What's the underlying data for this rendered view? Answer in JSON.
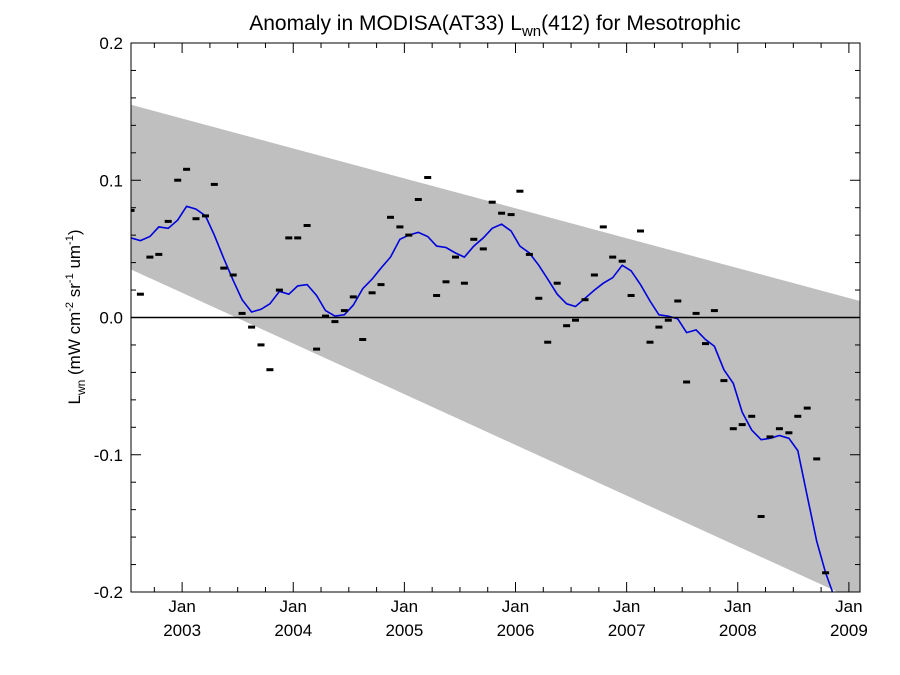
{
  "chart_data": {
    "type": "line",
    "title": {
      "prefix": "Anomaly in MODISA(AT33) L",
      "sub": "wn",
      "suffix": "(412) for Mesotrophic"
    },
    "ylabel": {
      "main": "L",
      "sub": "wn",
      "units": [
        {
          "t": " (mW cm",
          "s": ""
        },
        {
          "t": "-2",
          "s": "sup"
        },
        {
          "t": " sr",
          "s": ""
        },
        {
          "t": "-1",
          "s": "sup"
        },
        {
          "t": " um",
          "s": ""
        },
        {
          "t": "-1",
          "s": "sup"
        },
        {
          "t": ")",
          "s": ""
        }
      ]
    },
    "xlabel": "",
    "xlim": [
      2002.54,
      2009.1
    ],
    "ylim": [
      -0.2,
      0.2
    ],
    "x_ticks": [
      {
        "x": 2003,
        "month": "Jan",
        "year": "2003"
      },
      {
        "x": 2004,
        "month": "Jan",
        "year": "2004"
      },
      {
        "x": 2005,
        "month": "Jan",
        "year": "2005"
      },
      {
        "x": 2006,
        "month": "Jan",
        "year": "2006"
      },
      {
        "x": 2007,
        "month": "Jan",
        "year": "2007"
      },
      {
        "x": 2008,
        "month": "Jan",
        "year": "2008"
      },
      {
        "x": 2009,
        "month": "Jan",
        "year": "2009"
      }
    ],
    "y_ticks": [
      {
        "y": 0.2,
        "label": "0.2"
      },
      {
        "y": 0.1,
        "label": "0.1"
      },
      {
        "y": 0.0,
        "label": "0.0"
      },
      {
        "y": -0.1,
        "label": "-0.1"
      },
      {
        "y": -0.2,
        "label": "-0.2"
      }
    ],
    "envelope": {
      "color": "#bfbfbf",
      "upper": [
        [
          2002.54,
          0.155
        ],
        [
          2009.1,
          0.012
        ]
      ],
      "lower": [
        [
          2002.54,
          0.035
        ],
        [
          2008.9,
          -0.2
        ]
      ]
    },
    "zero_line": {
      "y": 0.0,
      "color": "#000000"
    },
    "series": [
      {
        "kind": "monthly-anomaly",
        "color": "#000000",
        "x": [
          2002.54,
          2002.625,
          2002.71,
          2002.79,
          2002.875,
          2002.96,
          2003.04,
          2003.125,
          2003.21,
          2003.29,
          2003.375,
          2003.46,
          2003.54,
          2003.625,
          2003.71,
          2003.79,
          2003.875,
          2003.96,
          2004.04,
          2004.125,
          2004.21,
          2004.29,
          2004.375,
          2004.46,
          2004.54,
          2004.625,
          2004.71,
          2004.79,
          2004.875,
          2004.96,
          2005.04,
          2005.125,
          2005.21,
          2005.29,
          2005.375,
          2005.46,
          2005.54,
          2005.625,
          2005.71,
          2005.79,
          2005.875,
          2005.96,
          2006.04,
          2006.125,
          2006.21,
          2006.29,
          2006.375,
          2006.46,
          2006.54,
          2006.625,
          2006.71,
          2006.79,
          2006.875,
          2006.96,
          2007.04,
          2007.125,
          2007.21,
          2007.29,
          2007.375,
          2007.46,
          2007.54,
          2007.625,
          2007.71,
          2007.79,
          2007.875,
          2007.96,
          2008.04,
          2008.125,
          2008.21,
          2008.29,
          2008.375,
          2008.46,
          2008.54,
          2008.625,
          2008.71,
          2008.79,
          2008.875
        ],
        "y": [
          0.078,
          0.017,
          0.044,
          0.046,
          0.07,
          0.1,
          0.108,
          0.072,
          0.074,
          0.097,
          0.036,
          0.031,
          0.003,
          -0.007,
          -0.02,
          -0.038,
          0.02,
          0.058,
          0.058,
          0.067,
          -0.023,
          0.001,
          -0.003,
          0.005,
          0.015,
          -0.016,
          0.018,
          0.024,
          0.073,
          0.066,
          0.06,
          0.086,
          0.102,
          0.016,
          0.026,
          0.044,
          0.025,
          0.057,
          0.05,
          0.084,
          0.076,
          0.075,
          0.092,
          0.046,
          0.014,
          -0.018,
          0.025,
          -0.006,
          -0.002,
          0.013,
          0.031,
          0.066,
          0.044,
          0.041,
          0.016,
          0.063,
          -0.018,
          -0.007,
          -0.002,
          0.012,
          -0.047,
          0.003,
          -0.019,
          0.005,
          -0.046,
          -0.081,
          -0.078,
          -0.072,
          -0.145,
          -0.087,
          -0.081,
          -0.084,
          -0.072,
          -0.066,
          -0.103,
          -0.186,
          -0.201
        ]
      },
      {
        "kind": "smoothed",
        "color": "#0000dd",
        "x": [
          2002.54,
          2002.625,
          2002.71,
          2002.79,
          2002.875,
          2002.96,
          2003.04,
          2003.125,
          2003.21,
          2003.29,
          2003.375,
          2003.46,
          2003.54,
          2003.625,
          2003.71,
          2003.79,
          2003.875,
          2003.96,
          2004.04,
          2004.125,
          2004.21,
          2004.29,
          2004.375,
          2004.46,
          2004.54,
          2004.625,
          2004.71,
          2004.79,
          2004.875,
          2004.96,
          2005.04,
          2005.125,
          2005.21,
          2005.29,
          2005.375,
          2005.46,
          2005.54,
          2005.625,
          2005.71,
          2005.79,
          2005.875,
          2005.96,
          2006.04,
          2006.125,
          2006.21,
          2006.29,
          2006.375,
          2006.46,
          2006.54,
          2006.625,
          2006.71,
          2006.79,
          2006.875,
          2006.96,
          2007.04,
          2007.125,
          2007.21,
          2007.29,
          2007.375,
          2007.46,
          2007.54,
          2007.625,
          2007.71,
          2007.79,
          2007.875,
          2007.96,
          2008.04,
          2008.125,
          2008.21,
          2008.29,
          2008.375,
          2008.46,
          2008.54,
          2008.625,
          2008.71,
          2008.79,
          2008.875
        ],
        "y": [
          0.058,
          0.056,
          0.059,
          0.066,
          0.065,
          0.071,
          0.081,
          0.079,
          0.074,
          0.06,
          0.043,
          0.027,
          0.013,
          0.004,
          0.006,
          0.01,
          0.019,
          0.017,
          0.023,
          0.024,
          0.016,
          0.005,
          0.001,
          0.002,
          0.009,
          0.021,
          0.028,
          0.036,
          0.044,
          0.057,
          0.06,
          0.062,
          0.059,
          0.052,
          0.051,
          0.047,
          0.044,
          0.052,
          0.058,
          0.065,
          0.068,
          0.063,
          0.052,
          0.047,
          0.038,
          0.028,
          0.017,
          0.01,
          0.008,
          0.014,
          0.02,
          0.025,
          0.029,
          0.038,
          0.034,
          0.024,
          0.012,
          0.002,
          0.001,
          -0.001,
          -0.011,
          -0.009,
          -0.016,
          -0.021,
          -0.038,
          -0.048,
          -0.069,
          -0.082,
          -0.089,
          -0.088,
          -0.086,
          -0.088,
          -0.097,
          -0.13,
          -0.163,
          -0.186,
          -0.205
        ]
      }
    ],
    "grid": false
  }
}
